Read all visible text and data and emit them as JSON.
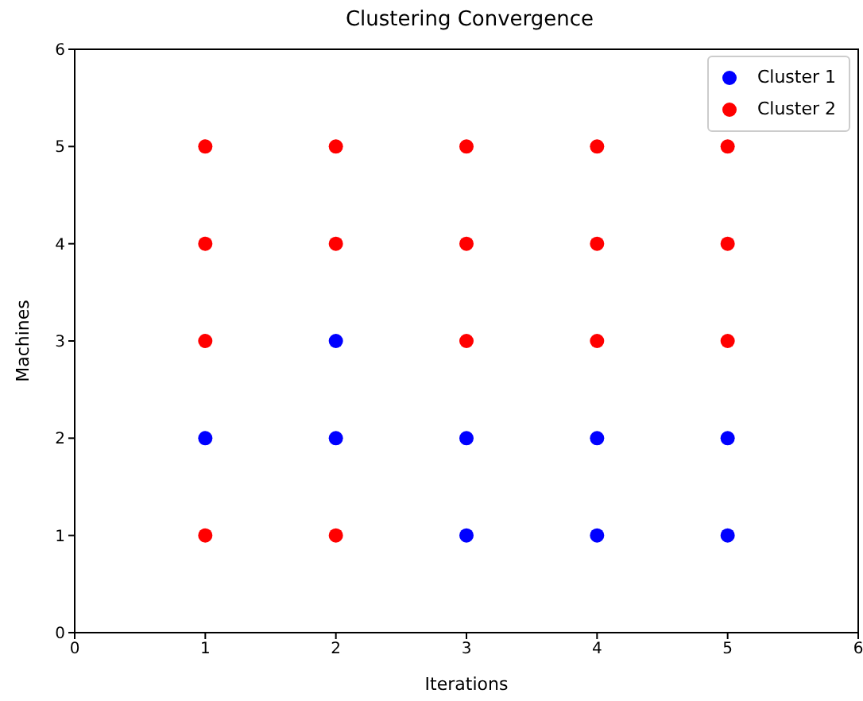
{
  "chart_data": {
    "type": "scatter",
    "title": "Clustering Convergence",
    "xlabel": "Iterations",
    "ylabel": "Machines",
    "xlim": [
      0,
      6
    ],
    "ylim": [
      0,
      6
    ],
    "xticks": [
      0,
      1,
      2,
      3,
      4,
      5,
      6
    ],
    "yticks": [
      0,
      1,
      2,
      3,
      4,
      5,
      6
    ],
    "grid": false,
    "legend": "top right",
    "marker": "circle",
    "series": [
      {
        "name": "Cluster 1",
        "color": "#0000ff",
        "x": [
          1,
          2,
          2,
          3,
          3,
          4,
          4,
          5,
          5
        ],
        "values": [
          2,
          2,
          3,
          1,
          2,
          1,
          2,
          1,
          2
        ]
      },
      {
        "name": "Cluster 2",
        "color": "#ff0000",
        "x": [
          1,
          1,
          1,
          1,
          2,
          2,
          2,
          3,
          3,
          3,
          4,
          4,
          4,
          5,
          5,
          5
        ],
        "values": [
          1,
          3,
          4,
          5,
          1,
          4,
          5,
          3,
          4,
          5,
          3,
          4,
          5,
          3,
          4,
          5
        ]
      }
    ]
  }
}
